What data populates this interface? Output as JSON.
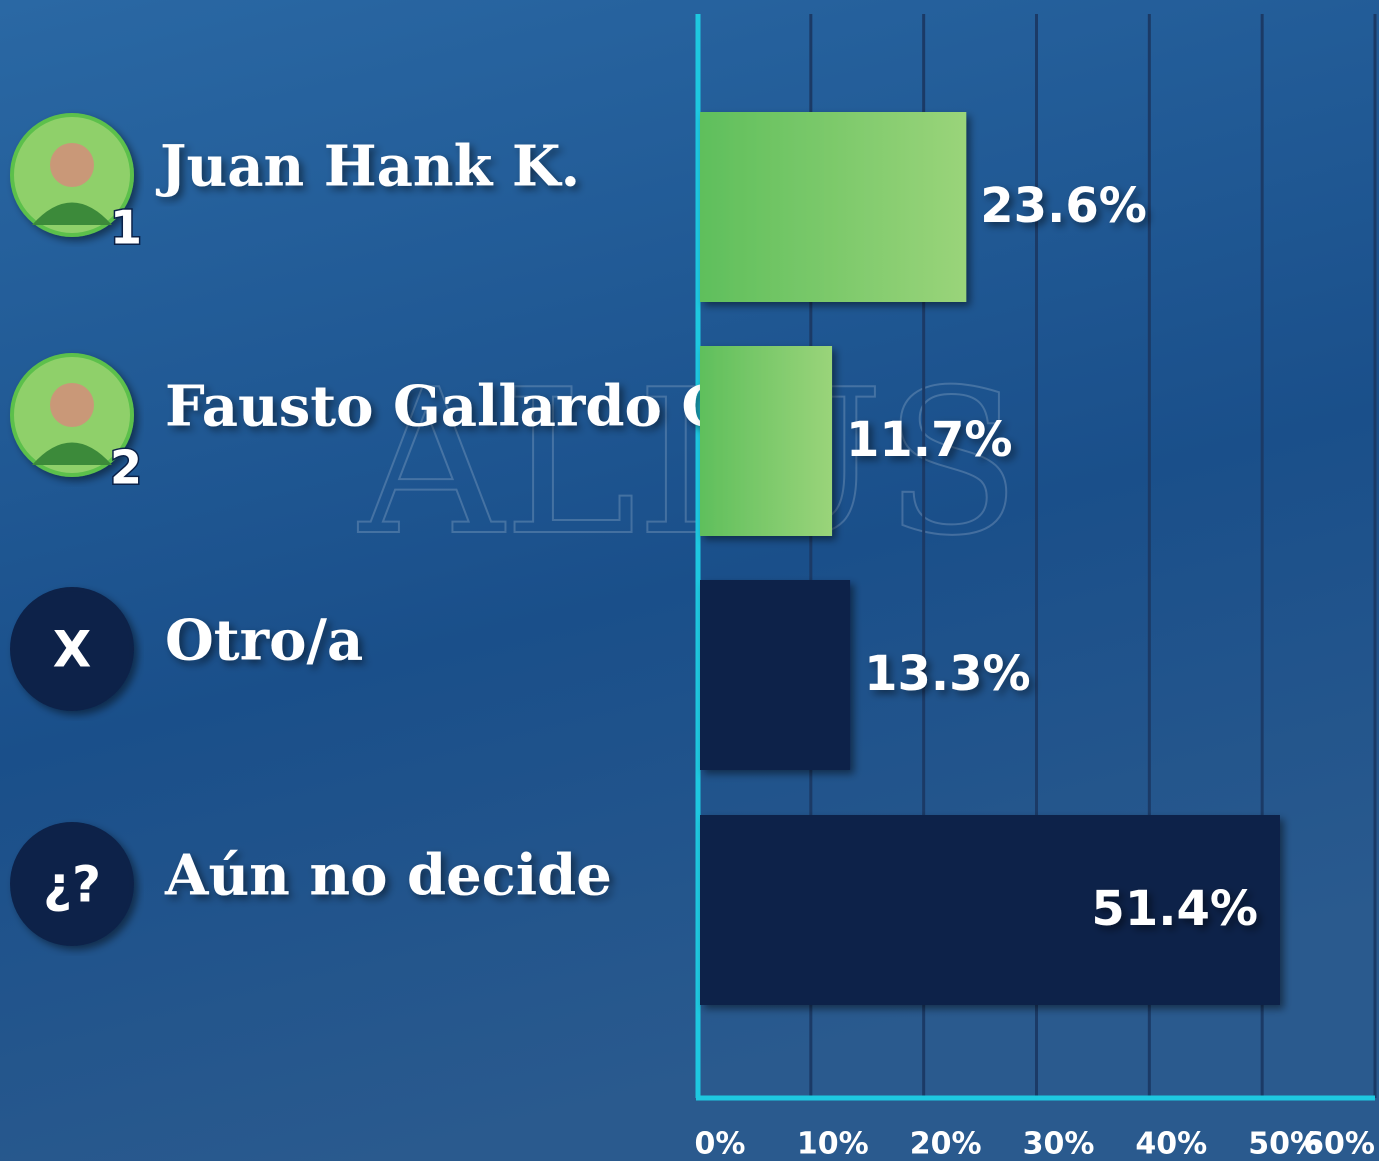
{
  "chart_data": {
    "type": "bar",
    "orientation": "horizontal",
    "watermark": "ALIUS",
    "categories": [
      "Juan Hank K.",
      "Fausto Gallardo G.",
      "Otro/a",
      "Aún no decide"
    ],
    "badges": [
      "1",
      "2",
      "X",
      "¿?"
    ],
    "values": [
      23.6,
      11.7,
      13.3,
      51.4
    ],
    "value_labels": [
      "23.6%",
      "11.7%",
      "13.3%",
      "51.4%"
    ],
    "colors": [
      "#7cc86a",
      "#7cc86a",
      "#0a2148",
      "#0a2148"
    ],
    "xlim": [
      0,
      60
    ],
    "xticks": [
      {
        "value": 0,
        "label": "0%"
      },
      {
        "value": 10,
        "label": "10%"
      },
      {
        "value": 20,
        "label": "20%"
      },
      {
        "value": 30,
        "label": "30%"
      },
      {
        "value": 40,
        "label": "40%"
      },
      {
        "value": 50,
        "label": "50%"
      },
      {
        "value": 60,
        "label": "60%"
      }
    ],
    "grid": true
  }
}
